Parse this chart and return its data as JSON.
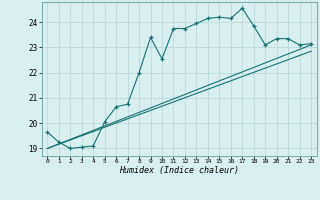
{
  "xlabel": "Humidex (Indice chaleur)",
  "ylabel": "",
  "bg_color": "#d8eff0",
  "grid_color": "#b8d4d4",
  "line_color": "#1a7070",
  "xlim": [
    -0.5,
    23.5
  ],
  "ylim": [
    18.7,
    24.8
  ],
  "yticks": [
    19,
    20,
    21,
    22,
    23,
    24
  ],
  "xticks": [
    0,
    1,
    2,
    3,
    4,
    5,
    6,
    7,
    8,
    9,
    10,
    11,
    12,
    13,
    14,
    15,
    16,
    17,
    18,
    19,
    20,
    21,
    22,
    23
  ],
  "line1_x": [
    0,
    1,
    2,
    3,
    4,
    5,
    6,
    7,
    8,
    9,
    10,
    11,
    12,
    13,
    14,
    15,
    16,
    17,
    18,
    19,
    20,
    21,
    22,
    23
  ],
  "line1_y": [
    19.65,
    19.25,
    19.0,
    19.05,
    19.1,
    20.05,
    20.65,
    20.75,
    22.0,
    23.4,
    22.55,
    23.75,
    23.75,
    23.95,
    24.15,
    24.2,
    24.15,
    24.55,
    23.85,
    23.1,
    23.35,
    23.35,
    23.1,
    23.15
  ],
  "line2_x": [
    0,
    23
  ],
  "line2_y": [
    19.0,
    23.1
  ],
  "line3_x": [
    0,
    23
  ],
  "line3_y": [
    19.0,
    22.85
  ]
}
